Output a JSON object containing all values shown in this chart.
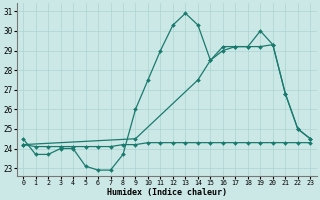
{
  "line1_x": [
    0,
    1,
    2,
    3,
    4,
    5,
    6,
    7,
    8,
    9,
    10,
    11,
    12,
    13,
    14,
    15,
    16,
    17,
    18,
    19,
    20,
    21,
    22,
    23
  ],
  "line1_y": [
    24.5,
    23.7,
    23.7,
    24.0,
    24.0,
    23.1,
    22.9,
    22.9,
    23.7,
    26.0,
    27.5,
    29.0,
    30.3,
    30.9,
    30.3,
    28.5,
    29.2,
    29.2,
    29.2,
    30.0,
    29.3,
    26.8,
    25.0,
    24.5
  ],
  "line2_x": [
    0,
    1,
    2,
    3,
    4,
    5,
    6,
    7,
    8,
    9,
    10,
    11,
    12,
    13,
    14,
    15,
    16,
    17,
    18,
    19,
    20,
    21,
    22,
    23
  ],
  "line2_y": [
    24.2,
    24.1,
    24.1,
    24.1,
    24.1,
    24.1,
    24.1,
    24.1,
    24.2,
    24.2,
    24.3,
    24.3,
    24.3,
    24.3,
    24.3,
    24.3,
    24.3,
    24.3,
    24.3,
    24.3,
    24.3,
    24.3,
    24.3,
    24.3
  ],
  "line3_x": [
    0,
    9,
    14,
    15,
    16,
    17,
    18,
    19,
    20,
    21,
    22,
    23
  ],
  "line3_y": [
    24.2,
    24.5,
    27.5,
    28.5,
    29.0,
    29.2,
    29.2,
    29.2,
    29.3,
    26.8,
    25.0,
    24.5
  ],
  "bg_color": "#cce8e6",
  "grid_color": "#aad4d2",
  "line_color": "#1a7a6e",
  "xlabel": "Humidex (Indice chaleur)",
  "xlim": [
    -0.5,
    23.5
  ],
  "ylim": [
    22.6,
    31.4
  ],
  "yticks": [
    23,
    24,
    25,
    26,
    27,
    28,
    29,
    30,
    31
  ],
  "xticks": [
    0,
    1,
    2,
    3,
    4,
    5,
    6,
    7,
    8,
    9,
    10,
    11,
    12,
    13,
    14,
    15,
    16,
    17,
    18,
    19,
    20,
    21,
    22,
    23
  ]
}
